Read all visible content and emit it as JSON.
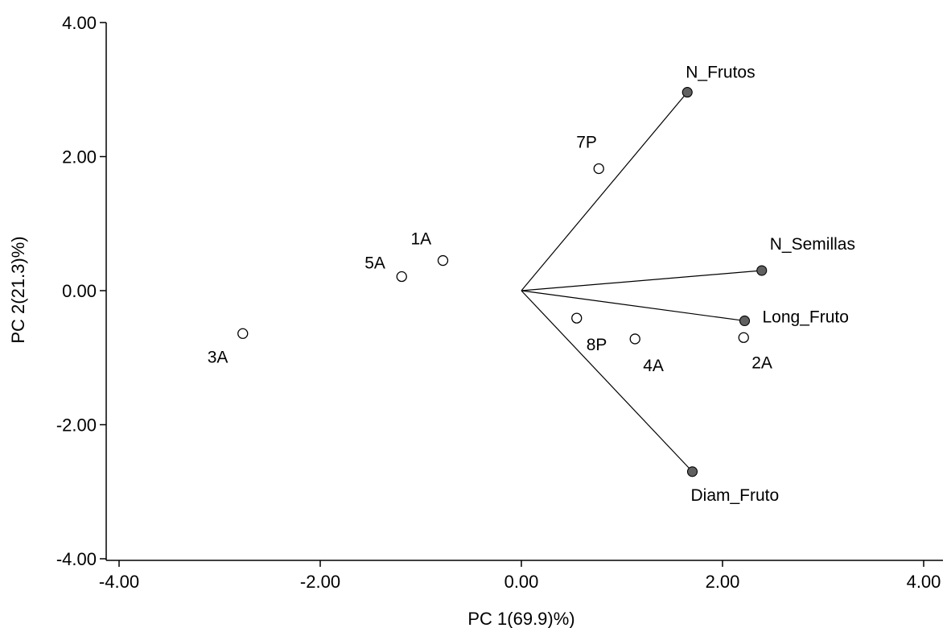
{
  "chart_data": {
    "type": "scatter",
    "title": "",
    "xlabel": "PC 1(69.9)%)",
    "ylabel": "PC 2(21.3)%)",
    "xlim": [
      -4,
      4
    ],
    "ylim": [
      -4,
      4
    ],
    "x_ticks": [
      "-4.00",
      "-2.00",
      "0.00",
      "2.00",
      "4.00"
    ],
    "y_ticks": [
      "4.00",
      "2.00",
      "0.00",
      "-2.00",
      "-4.00"
    ],
    "grid": false,
    "series": [
      {
        "kind": "observations",
        "marker": "open-circle",
        "points": [
          {
            "label": "7P",
            "x": 0.77,
            "y": 1.82
          },
          {
            "label": "1A",
            "x": -0.78,
            "y": 0.45
          },
          {
            "label": "5A",
            "x": -1.19,
            "y": 0.21
          },
          {
            "label": "3A",
            "x": -2.77,
            "y": -0.64
          },
          {
            "label": "8P",
            "x": 0.55,
            "y": -0.41
          },
          {
            "label": "4A",
            "x": 1.13,
            "y": -0.72
          },
          {
            "label": "2A",
            "x": 2.21,
            "y": -0.7
          }
        ]
      },
      {
        "kind": "variables",
        "marker": "filled-circle",
        "color": "#606060",
        "points": [
          {
            "label": "N_Frutos",
            "x": 1.65,
            "y": 2.96
          },
          {
            "label": "N_Semillas",
            "x": 2.39,
            "y": 0.3
          },
          {
            "label": "Long_Fruto",
            "x": 2.22,
            "y": -0.45
          },
          {
            "label": "Diam_Fruto",
            "x": 1.7,
            "y": -2.7
          }
        ]
      }
    ]
  }
}
